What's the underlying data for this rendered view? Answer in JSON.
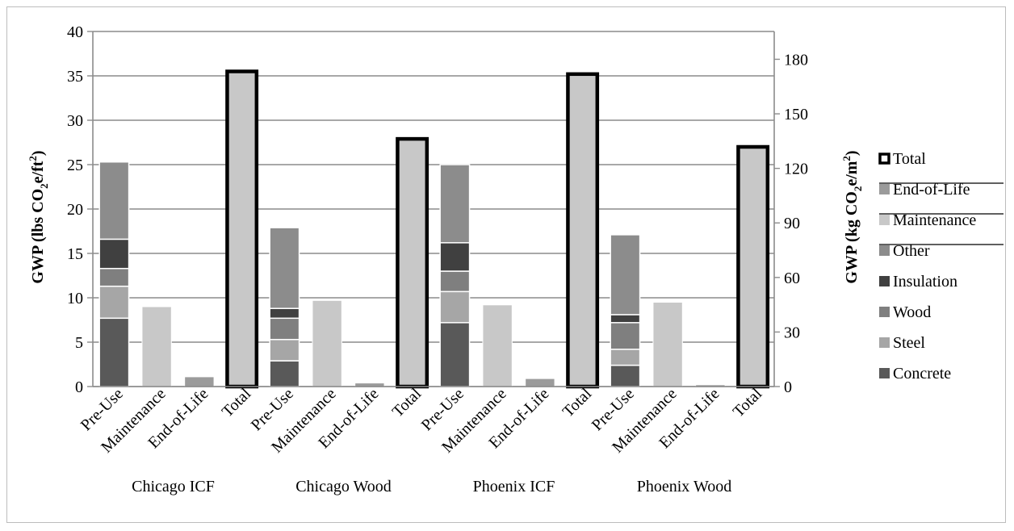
{
  "chart_data": {
    "type": "bar",
    "groups": [
      "Chicago ICF",
      "Chicago Wood",
      "Phoenix ICF",
      "Phoenix Wood"
    ],
    "categories": [
      "Pre-Use",
      "Maintenance",
      "End-of-Life",
      "Total"
    ],
    "ylabel_left": {
      "prefix": "GWP (lbs CO",
      "sub": "2",
      "mid": "e/ft",
      "sup": "2",
      "suffix": ")"
    },
    "ylabel_right": {
      "prefix": "GWP (kg CO",
      "sub": "2",
      "mid": "e/m",
      "sup": "2",
      "suffix": ")"
    },
    "ylim_left": [
      0,
      40
    ],
    "yticks_left": [
      0,
      5,
      10,
      15,
      20,
      25,
      30,
      35,
      40
    ],
    "ylim_right": [
      0,
      195.3
    ],
    "yticks_right": [
      0,
      30,
      60,
      90,
      120,
      150,
      180
    ],
    "grid": true,
    "legend_position": "right",
    "legend": [
      {
        "name": "Total",
        "key": "total"
      },
      {
        "name": "End-of-Life",
        "key": "eol"
      },
      {
        "name": "Maintenance",
        "key": "maint"
      },
      {
        "name": "Other",
        "key": "other"
      },
      {
        "name": "Insulation",
        "key": "insulation"
      },
      {
        "name": "Wood",
        "key": "wood"
      },
      {
        "name": "Steel",
        "key": "steel"
      },
      {
        "name": "Concrete",
        "key": "concrete"
      }
    ],
    "colors": {
      "concrete": "#595959",
      "steel": "#a6a6a6",
      "wood": "#7f7f7f",
      "insulation": "#404040",
      "other": "#8c8c8c",
      "maint": "#c8c8c8",
      "eol": "#9b9b9b",
      "total_fill": "#c8c8c8",
      "total_border": "#000000"
    },
    "pre_use": [
      {
        "group": "Chicago ICF",
        "concrete": 7.7,
        "steel": 3.6,
        "wood": 2.0,
        "insulation": 3.3,
        "other": 8.7
      },
      {
        "group": "Chicago Wood",
        "concrete": 2.9,
        "steel": 2.4,
        "wood": 2.4,
        "insulation": 1.1,
        "other": 9.1
      },
      {
        "group": "Phoenix ICF",
        "concrete": 7.2,
        "steel": 3.5,
        "wood": 2.3,
        "insulation": 3.2,
        "other": 8.8
      },
      {
        "group": "Phoenix Wood",
        "concrete": 2.4,
        "steel": 1.8,
        "wood": 3.0,
        "insulation": 0.9,
        "other": 9.0
      }
    ],
    "maintenance": [
      9.0,
      9.7,
      9.2,
      9.5
    ],
    "end_of_life": [
      1.1,
      0.4,
      0.9,
      0.2
    ],
    "total": [
      35.5,
      27.9,
      35.2,
      27.0
    ]
  }
}
